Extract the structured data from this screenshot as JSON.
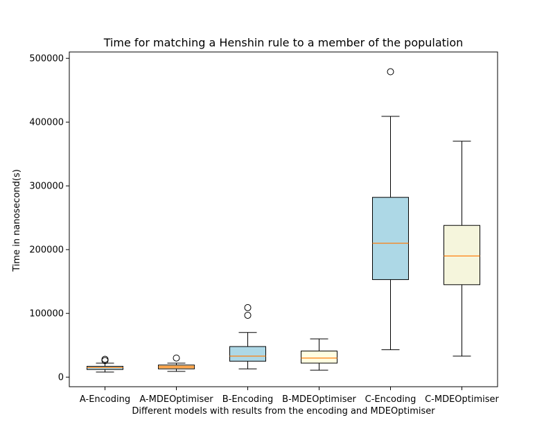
{
  "chart_data": {
    "type": "box",
    "title": "Time for matching a Henshin rule to a member of the population",
    "xlabel": "Different models with results from the encoding and MDEOptimiser",
    "ylabel": "Time in nanosecond(s)",
    "ylim": [
      -15000,
      510000
    ],
    "yticks": [
      0,
      100000,
      200000,
      300000,
      400000,
      500000
    ],
    "ytick_labels": [
      "0",
      "100000",
      "200000",
      "300000",
      "400000",
      "500000"
    ],
    "grid": false,
    "median_color": "#ff7f0e",
    "categories": [
      "A-Encoding",
      "A-MDEOptimiser",
      "B-Encoding",
      "B-MDEOptimiser",
      "C-Encoding",
      "C-MDEOptimiser"
    ],
    "boxes": [
      {
        "label": "A-Encoding",
        "whisker_low": 8000,
        "q1": 12000,
        "median": 15000,
        "q3": 17000,
        "whisker_high": 22000,
        "outliers": [
          26000,
          28000
        ],
        "color": "#add8e6"
      },
      {
        "label": "A-MDEOptimiser",
        "whisker_low": 9000,
        "q1": 13000,
        "median": 16000,
        "q3": 19000,
        "whisker_high": 22000,
        "outliers": [
          30000
        ],
        "color": "#ffc580"
      },
      {
        "label": "B-Encoding",
        "whisker_low": 13000,
        "q1": 25000,
        "median": 33000,
        "q3": 48000,
        "whisker_high": 70000,
        "outliers": [
          97000,
          109000
        ],
        "color": "#add8e6"
      },
      {
        "label": "B-MDEOptimiser",
        "whisker_low": 11000,
        "q1": 22000,
        "median": 30000,
        "q3": 41000,
        "whisker_high": 60000,
        "outliers": [],
        "color": "#fffee0"
      },
      {
        "label": "C-Encoding",
        "whisker_low": 43000,
        "q1": 153000,
        "median": 210000,
        "q3": 282000,
        "whisker_high": 409000,
        "outliers": [
          479000
        ],
        "color": "#add8e6"
      },
      {
        "label": "C-MDEOptimiser",
        "whisker_low": 33000,
        "q1": 145000,
        "median": 190000,
        "q3": 238000,
        "whisker_high": 370000,
        "outliers": [],
        "color": "#f5f5dc"
      }
    ]
  }
}
